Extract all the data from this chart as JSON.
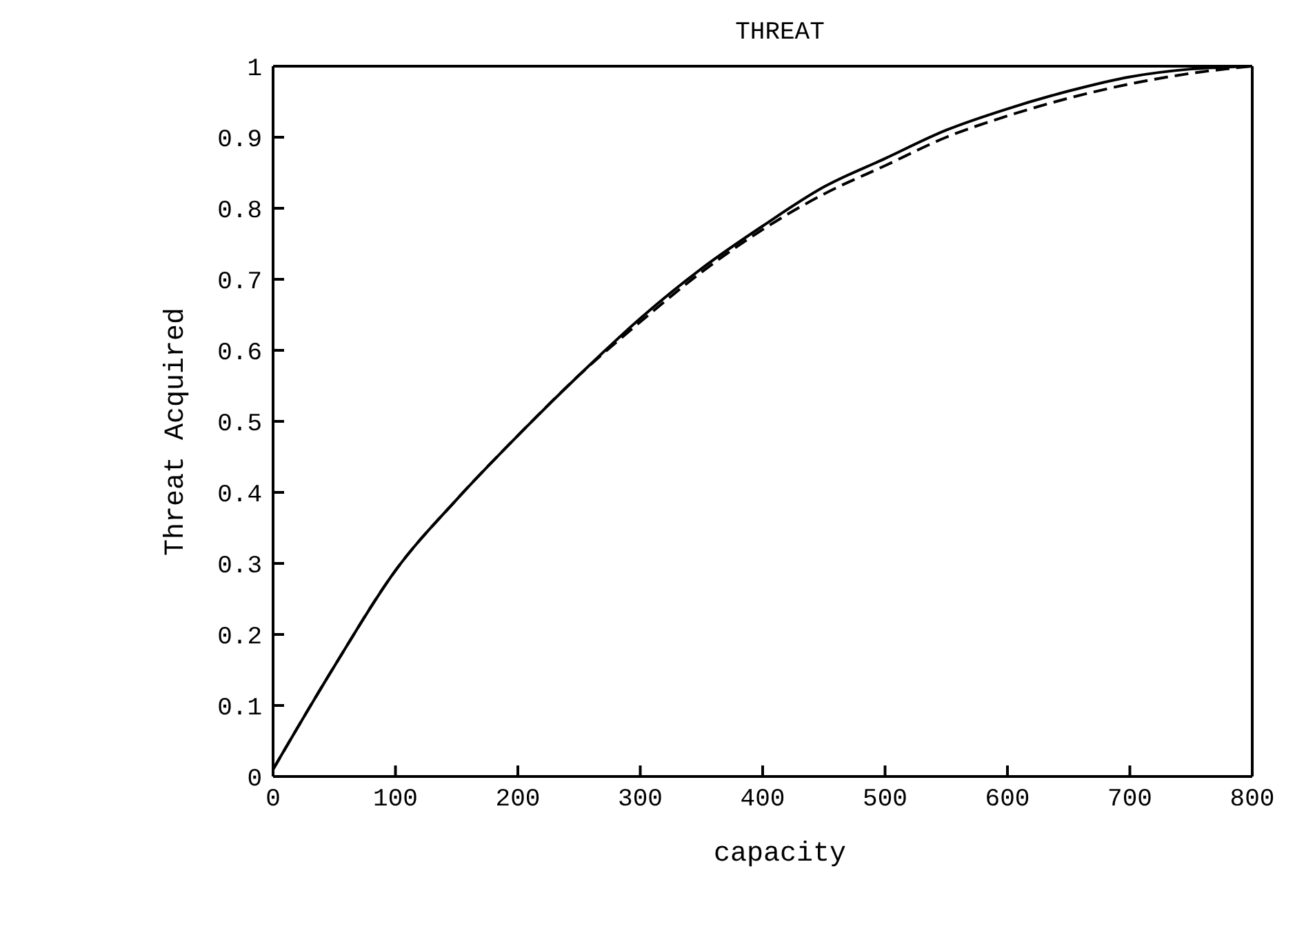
{
  "chart_data": {
    "type": "line",
    "title": "THREAT",
    "xlabel": "capacity",
    "ylabel": "Threat Acquired",
    "xlim": [
      0,
      800
    ],
    "xticks": [
      0,
      100,
      200,
      300,
      400,
      500,
      600,
      700,
      800
    ],
    "ylim": [
      0,
      1
    ],
    "yticks": [
      0,
      0.1,
      0.2,
      0.3,
      0.4,
      0.5,
      0.6,
      0.7,
      0.8,
      0.9,
      1
    ],
    "grid": false,
    "marker": "none",
    "series": [
      {
        "color": "#000000",
        "line_style": "solid",
        "x": [
          0,
          50,
          100,
          150,
          200,
          250,
          300,
          350,
          400,
          450,
          500,
          550,
          600,
          650,
          700,
          750,
          800
        ],
        "values": [
          0.01,
          0.155,
          0.29,
          0.39,
          0.48,
          0.565,
          0.645,
          0.715,
          0.775,
          0.83,
          0.87,
          0.91,
          0.94,
          0.965,
          0.985,
          0.996,
          1
        ]
      },
      {
        "color": "#000000",
        "line_style": "dashed",
        "x": [
          0,
          50,
          100,
          150,
          200,
          250,
          300,
          350,
          400,
          450,
          500,
          550,
          600,
          650,
          700,
          750,
          800
        ],
        "values": [
          0.01,
          0.155,
          0.29,
          0.39,
          0.48,
          0.565,
          0.64,
          0.71,
          0.77,
          0.82,
          0.86,
          0.9,
          0.93,
          0.955,
          0.975,
          0.99,
          1
        ]
      }
    ]
  }
}
